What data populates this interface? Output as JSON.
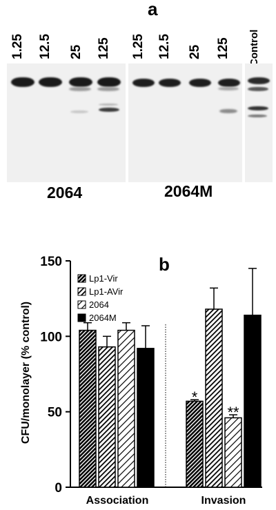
{
  "panel_a": {
    "letter": "a",
    "lanes": [
      "1.25",
      "12.5",
      "25",
      "125",
      "1.25",
      "12.5",
      "25",
      "125"
    ],
    "control_label": "Control",
    "strains": [
      "2064",
      "2064M"
    ]
  },
  "chart_data": {
    "type": "bar",
    "panel_letter": "b",
    "ylabel": "CFU/monolayer (% control)",
    "ylim": [
      0,
      150
    ],
    "yticks": [
      "0",
      "50",
      "100",
      "150"
    ],
    "categories": [
      "Association",
      "Invasion"
    ],
    "legend_position": "top-left",
    "series": [
      {
        "name": "Lp1-Vir",
        "pattern": "dense-hatch",
        "values": [
          104,
          57
        ],
        "errors": [
          5,
          1
        ]
      },
      {
        "name": "Lp1-AVir",
        "pattern": "hatch",
        "values": [
          93,
          118
        ],
        "errors": [
          7,
          14
        ]
      },
      {
        "name": "2064",
        "pattern": "light-hatch",
        "values": [
          104,
          46
        ],
        "errors": [
          5,
          2
        ]
      },
      {
        "name": "2064M",
        "pattern": "solid",
        "values": [
          92,
          114
        ],
        "errors": [
          15,
          31
        ]
      }
    ],
    "annotations": [
      {
        "category": "Invasion",
        "series": "Lp1-Vir",
        "text": "*"
      },
      {
        "category": "Invasion",
        "series": "2064",
        "text": "**"
      }
    ]
  }
}
